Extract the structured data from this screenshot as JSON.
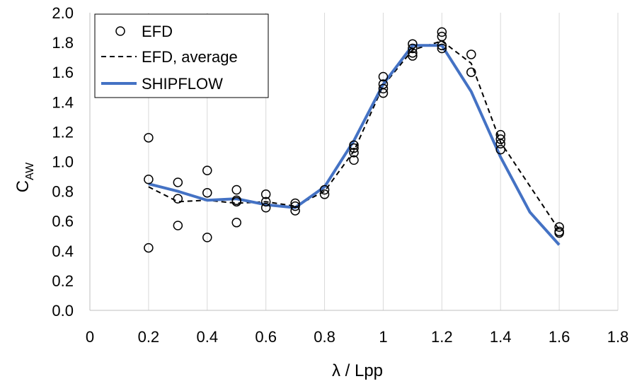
{
  "chart_data": {
    "type": "scatter",
    "xlabel": "λ / Lpp",
    "ylabel": {
      "main": "C",
      "sub": "AW"
    },
    "xlim": [
      0,
      1.8
    ],
    "ylim": [
      0,
      2.0
    ],
    "xticks": [
      "0",
      "0.2",
      "0.4",
      "0.6",
      "0.8",
      "1",
      "1.2",
      "1.4",
      "1.6",
      "1.8"
    ],
    "yticks": [
      "0.0",
      "0.2",
      "0.4",
      "0.6",
      "0.8",
      "1.0",
      "1.2",
      "1.4",
      "1.6",
      "1.8",
      "2.0"
    ],
    "grid": "vertical",
    "legend_position": "top-left",
    "colors": {
      "efd": "#000000",
      "shipflow": "#4472C4",
      "grid": "#d9d9d9"
    },
    "series": [
      {
        "name": "EFD",
        "kind": "markers",
        "points": [
          [
            0.2,
            1.16
          ],
          [
            0.2,
            0.88
          ],
          [
            0.2,
            0.42
          ],
          [
            0.3,
            0.86
          ],
          [
            0.3,
            0.75
          ],
          [
            0.3,
            0.57
          ],
          [
            0.4,
            0.94
          ],
          [
            0.4,
            0.79
          ],
          [
            0.4,
            0.49
          ],
          [
            0.5,
            0.81
          ],
          [
            0.5,
            0.74
          ],
          [
            0.5,
            0.73
          ],
          [
            0.5,
            0.59
          ],
          [
            0.6,
            0.78
          ],
          [
            0.6,
            0.73
          ],
          [
            0.6,
            0.69
          ],
          [
            0.7,
            0.72
          ],
          [
            0.7,
            0.7
          ],
          [
            0.7,
            0.67
          ],
          [
            0.8,
            0.81
          ],
          [
            0.8,
            0.78
          ],
          [
            0.9,
            1.11
          ],
          [
            0.9,
            1.09
          ],
          [
            0.9,
            1.06
          ],
          [
            0.9,
            1.01
          ],
          [
            1.0,
            1.57
          ],
          [
            1.0,
            1.52
          ],
          [
            1.0,
            1.49
          ],
          [
            1.0,
            1.46
          ],
          [
            1.1,
            1.79
          ],
          [
            1.1,
            1.76
          ],
          [
            1.1,
            1.73
          ],
          [
            1.1,
            1.71
          ],
          [
            1.2,
            1.87
          ],
          [
            1.2,
            1.84
          ],
          [
            1.2,
            1.78
          ],
          [
            1.2,
            1.76
          ],
          [
            1.3,
            1.72
          ],
          [
            1.3,
            1.6
          ],
          [
            1.4,
            1.18
          ],
          [
            1.4,
            1.15
          ],
          [
            1.4,
            1.12
          ],
          [
            1.4,
            1.08
          ],
          [
            1.6,
            0.56
          ],
          [
            1.6,
            0.53
          ],
          [
            1.6,
            0.52
          ]
        ]
      },
      {
        "name": "EFD, average",
        "kind": "dashed-line",
        "x": [
          0.2,
          0.3,
          0.4,
          0.5,
          0.6,
          0.7,
          0.8,
          0.9,
          1.0,
          1.1,
          1.2,
          1.3,
          1.4,
          1.6
        ],
        "y": [
          0.83,
          0.73,
          0.74,
          0.72,
          0.73,
          0.7,
          0.8,
          1.07,
          1.51,
          1.75,
          1.81,
          1.66,
          1.13,
          0.54
        ]
      },
      {
        "name": "SHIPFLOW",
        "kind": "solid-line",
        "x": [
          0.2,
          0.3,
          0.4,
          0.5,
          0.6,
          0.7,
          0.8,
          0.9,
          1.0,
          1.1,
          1.2,
          1.3,
          1.4,
          1.5,
          1.6
        ],
        "y": [
          0.85,
          0.8,
          0.74,
          0.75,
          0.71,
          0.69,
          0.83,
          1.14,
          1.52,
          1.78,
          1.78,
          1.47,
          1.03,
          0.66,
          0.44
        ]
      }
    ]
  }
}
